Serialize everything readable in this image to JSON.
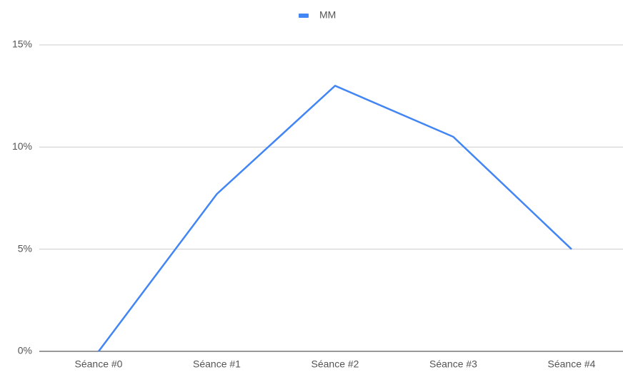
{
  "chart_data": {
    "type": "line",
    "categories": [
      "Séance #0",
      "Séance #1",
      "Séance #2",
      "Séance #3",
      "Séance #4"
    ],
    "series": [
      {
        "name": "MM",
        "color": "#4285f4",
        "values": [
          0,
          7.7,
          13,
          10.5,
          5
        ]
      }
    ],
    "ylim": [
      0,
      15
    ],
    "yticks": [
      {
        "value": 0,
        "label": "0%"
      },
      {
        "value": 5,
        "label": "5%"
      },
      {
        "value": 10,
        "label": "10%"
      },
      {
        "value": 15,
        "label": "15%"
      }
    ],
    "grid": true,
    "legend": "top"
  }
}
